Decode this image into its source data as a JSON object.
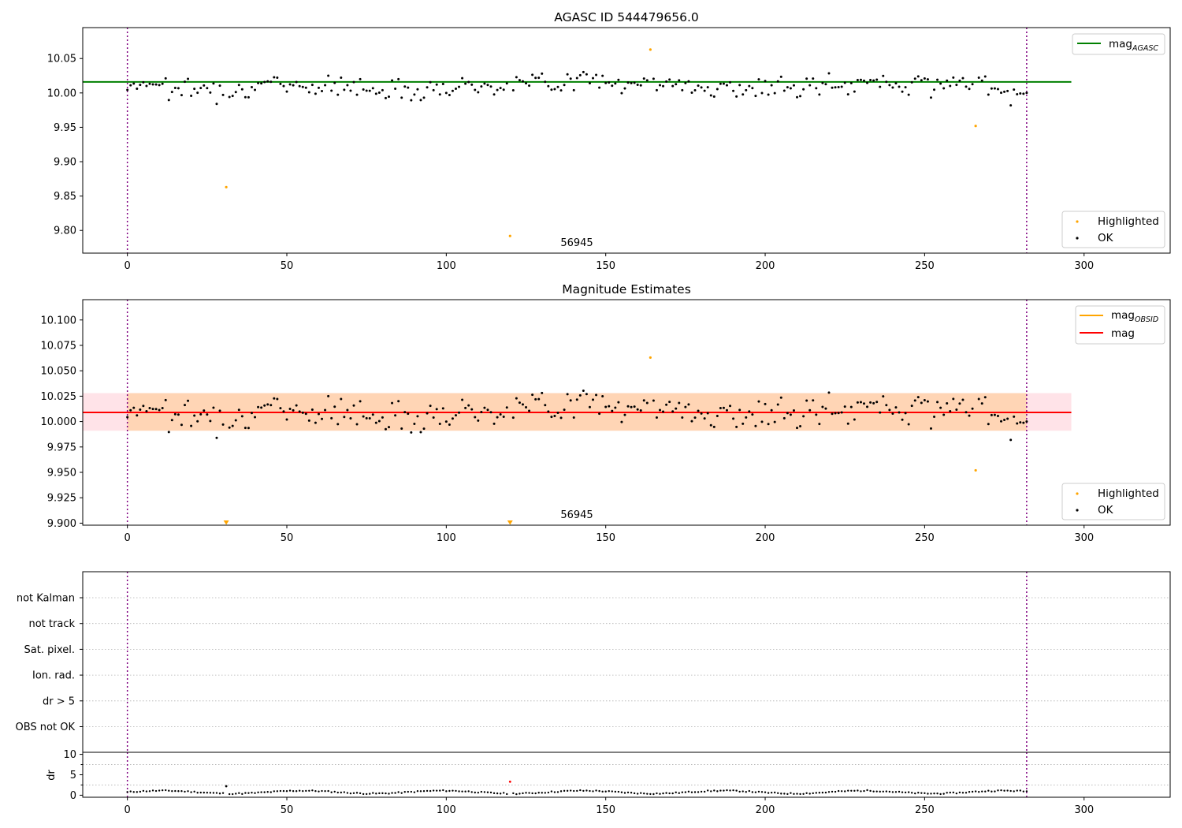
{
  "chart_data": [
    {
      "type": "scatter",
      "title": "AGASC ID 544479656.0",
      "xlim": [
        -14,
        327
      ],
      "ylim": [
        9.767,
        10.095
      ],
      "yticks": [
        9.8,
        9.85,
        9.9,
        9.95,
        10.0,
        10.05
      ],
      "ytick_labels": [
        "9.80",
        "9.85",
        "9.90",
        "9.95",
        "10.00",
        "10.05"
      ],
      "xticks": [
        0,
        50,
        100,
        150,
        200,
        250,
        300
      ],
      "xtick_labels": [
        "0",
        "50",
        "100",
        "150",
        "200",
        "250",
        "300"
      ],
      "hlines": [
        {
          "y": 10.016,
          "x": [
            -14,
            296
          ],
          "color": "#008000"
        }
      ],
      "vlines": [
        0,
        282
      ],
      "annotation": {
        "text": "56945",
        "x": 140
      },
      "highlighted": {
        "x": [
          31,
          120,
          164,
          266
        ],
        "y": [
          9.863,
          9.792,
          10.063,
          9.952
        ]
      },
      "legend_top": [
        {
          "label": "mag",
          "sub": "AGASC",
          "color": "#008000"
        }
      ],
      "legend_bottom": [
        {
          "label": "Highlighted",
          "color": "#ffa500"
        },
        {
          "label": "OK",
          "color": "#000000"
        }
      ]
    },
    {
      "type": "scatter",
      "title": "Magnitude Estimates",
      "xlim": [
        -14,
        327
      ],
      "ylim": [
        9.898,
        10.12
      ],
      "yticks": [
        9.9,
        9.925,
        9.95,
        9.975,
        10.0,
        10.025,
        10.05,
        10.075,
        10.1
      ],
      "ytick_labels": [
        "9.900",
        "9.925",
        "9.950",
        "9.975",
        "10.000",
        "10.025",
        "10.050",
        "10.075",
        "10.100"
      ],
      "xticks": [
        0,
        50,
        100,
        150,
        200,
        250,
        300
      ],
      "xtick_labels": [
        "0",
        "50",
        "100",
        "150",
        "200",
        "250",
        "300"
      ],
      "band": {
        "y": [
          9.991,
          10.028
        ],
        "x": [
          -14,
          296
        ]
      },
      "band_inner": {
        "y": [
          9.991,
          10.028
        ],
        "x": [
          0,
          282
        ]
      },
      "hlines": [
        {
          "y": 10.009,
          "x": [
            -14,
            296
          ],
          "color": "#ff0000"
        }
      ],
      "vlines": [
        0,
        282
      ],
      "annotation": {
        "text": "56945",
        "x": 140
      },
      "highlighted": {
        "x": [
          164,
          266
        ],
        "y": [
          10.063,
          9.952
        ]
      },
      "below_range_x": [
        31,
        120
      ],
      "legend_top": [
        {
          "label": "mag",
          "sub": "OBSID",
          "color": "#ffa500"
        },
        {
          "label": "mag",
          "sub": "",
          "color": "#ff0000"
        }
      ],
      "legend_bottom": [
        {
          "label": "Highlighted",
          "color": "#ffa500"
        },
        {
          "label": "OK",
          "color": "#000000"
        }
      ]
    },
    {
      "type": "scatter",
      "xlim": [
        -14,
        327
      ],
      "categories": [
        "OBS not OK",
        "dr > 5",
        "Ion. rad.",
        "Sat. pixel.",
        "not track",
        "not Kalman"
      ],
      "vlines": [
        0,
        282
      ]
    },
    {
      "type": "scatter",
      "ylabel": "dr",
      "xlim": [
        -14,
        327
      ],
      "ylim": [
        -0.5,
        10.5
      ],
      "yticks": [
        0,
        5,
        10
      ],
      "ytick_labels": [
        "0",
        "5",
        "10"
      ],
      "xticks": [
        0,
        50,
        100,
        150,
        200,
        250,
        300
      ],
      "xtick_labels": [
        "0",
        "50",
        "100",
        "150",
        "200",
        "250",
        "300"
      ],
      "vlines": [
        0,
        282
      ],
      "outliers": {
        "x": [
          31,
          120
        ],
        "y": [
          2.2,
          3.3
        ],
        "colors": [
          "#000000",
          "#ff0000"
        ]
      }
    }
  ]
}
